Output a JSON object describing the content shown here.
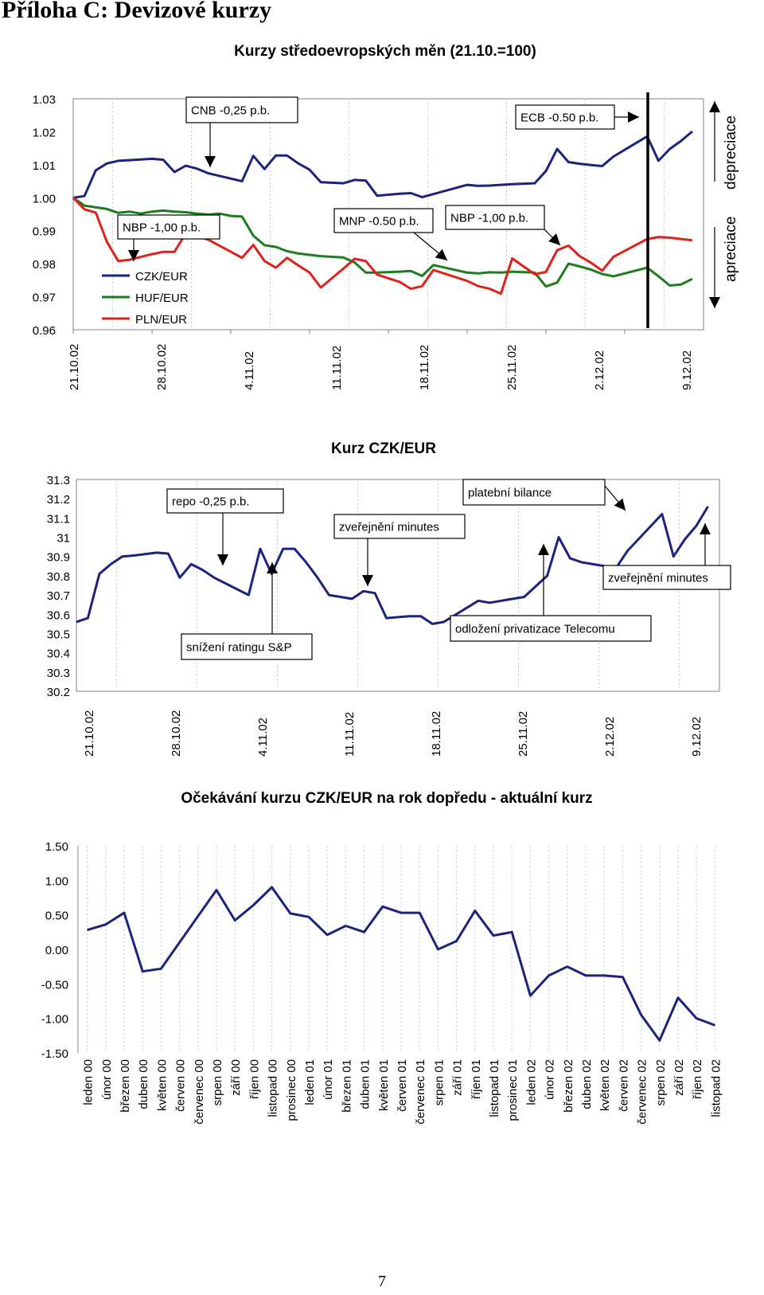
{
  "page": {
    "heading": "Příloha C: Devizové kurzy",
    "page_number": "7"
  },
  "colors": {
    "czk": "#1a237e",
    "huf": "#1b7d1b",
    "pln": "#e0201a"
  },
  "chart_data": [
    {
      "type": "line",
      "title": "Kurzy středoevropských měn (21.10.=100)",
      "x_tick_labels": [
        "21.10.02",
        "28.10.02",
        "4.11.02",
        "11.11.02",
        "18.11.02",
        "25.11.02",
        "2.12.02",
        "9.12.02"
      ],
      "y_ticks": [
        "1.03",
        "1.02",
        "1.01",
        "1.00",
        "0.99",
        "0.98",
        "0.97",
        "0.96"
      ],
      "ylim": [
        0.96,
        1.03
      ],
      "xlim": [
        0,
        56
      ],
      "grid": "vertical",
      "legend_position": "bottom-left",
      "series": [
        {
          "name": "CZK/EUR",
          "color": "#1a237e",
          "x": [
            0,
            1,
            2,
            3,
            4,
            5,
            7,
            8,
            9,
            10,
            11,
            12,
            15,
            16,
            17,
            18,
            19,
            20,
            21,
            22,
            24,
            25,
            26,
            27,
            29,
            30,
            31,
            32,
            35,
            36,
            37,
            38,
            39,
            41,
            42,
            43,
            44,
            45,
            46,
            47,
            48,
            51,
            52,
            53,
            54,
            55
          ],
          "values": [
            1.0,
            1.0005,
            1.0083,
            1.0104,
            1.0112,
            1.0114,
            1.0118,
            1.0115,
            1.0078,
            1.0097,
            1.0088,
            1.0074,
            1.005,
            1.0127,
            1.0087,
            1.0128,
            1.0128,
            1.0104,
            1.0085,
            1.0047,
            1.0044,
            1.0054,
            1.0052,
            1.0006,
            1.0012,
            1.0014,
            1.0002,
            1.0011,
            1.0039,
            1.0036,
            1.0037,
            1.0039,
            1.0041,
            1.0044,
            1.0081,
            1.0148,
            1.0108,
            1.0103,
            1.0099,
            1.0096,
            1.0125,
            1.0186,
            1.0112,
            1.0148,
            1.0172,
            1.0201
          ]
        },
        {
          "name": "HUF/EUR",
          "color": "#1b7d1b",
          "x": [
            0,
            1,
            2,
            3,
            4,
            5,
            6,
            7,
            8,
            9,
            10,
            11,
            12,
            13,
            14,
            15,
            16,
            17,
            18,
            19,
            20,
            21,
            22,
            24,
            25,
            26,
            27,
            29,
            30,
            31,
            32,
            35,
            36,
            37,
            38,
            39,
            41,
            42,
            43,
            44,
            45,
            46,
            47,
            48,
            51,
            52,
            53,
            54,
            55
          ],
          "values": [
            1.0,
            0.9976,
            0.9971,
            0.9966,
            0.9954,
            0.9958,
            0.9952,
            0.9958,
            0.9961,
            0.9958,
            0.9956,
            0.9952,
            0.9949,
            0.9952,
            0.9945,
            0.9943,
            0.9885,
            0.9856,
            0.9851,
            0.9838,
            0.9831,
            0.9827,
            0.9823,
            0.9819,
            0.9804,
            0.9773,
            0.9773,
            0.9776,
            0.9778,
            0.9763,
            0.9796,
            0.9773,
            0.9771,
            0.9774,
            0.9773,
            0.9776,
            0.9773,
            0.9731,
            0.9743,
            0.98,
            0.9792,
            0.9782,
            0.9769,
            0.9762,
            0.9788,
            0.9762,
            0.9734,
            0.9737,
            0.9754
          ]
        },
        {
          "name": "PLN/EUR",
          "color": "#e0201a",
          "x": [
            0,
            1,
            2,
            3,
            4,
            5,
            7,
            8,
            9,
            10,
            11,
            12,
            15,
            16,
            17,
            18,
            19,
            20,
            21,
            22,
            24,
            25,
            26,
            27,
            29,
            30,
            31,
            32,
            35,
            36,
            37,
            38,
            39,
            41,
            42,
            43,
            44,
            45,
            46,
            47,
            48,
            51,
            52,
            53,
            54,
            55
          ],
          "values": [
            1.0,
            0.9965,
            0.9955,
            0.9866,
            0.9808,
            0.9812,
            0.9829,
            0.9836,
            0.9836,
            0.9892,
            0.9883,
            0.9873,
            0.9818,
            0.9857,
            0.9808,
            0.9788,
            0.9818,
            0.9795,
            0.9773,
            0.9728,
            0.9785,
            0.9815,
            0.9808,
            0.9767,
            0.9745,
            0.9724,
            0.9732,
            0.9781,
            0.9748,
            0.9732,
            0.9724,
            0.9709,
            0.9816,
            0.9768,
            0.9775,
            0.9841,
            0.9855,
            0.9823,
            0.9803,
            0.9779,
            0.9821,
            0.9875,
            0.9881,
            0.9879,
            0.9875,
            0.9871
          ]
        }
      ],
      "annotations": [
        {
          "text": "CNB -0,25 p.b."
        },
        {
          "text": "ECB -0.50 p.b."
        },
        {
          "text": "NBP -1,00 p.b."
        },
        {
          "text": "MNP -0.50 p.b."
        },
        {
          "text": "NBP -1,00 p.b."
        }
      ],
      "side_labels": {
        "top": "depreciace",
        "bottom": "apreciace"
      }
    },
    {
      "type": "line",
      "title": "Kurz CZK/EUR",
      "x_tick_labels": [
        "21.10.02",
        "28.10.02",
        "4.11.02",
        "11.11.02",
        "18.11.02",
        "25.11.02",
        "2.12.02",
        "9.12.02"
      ],
      "y_ticks": [
        "31.3",
        "31.2",
        "31.1",
        "31",
        "30.9",
        "30.8",
        "30.7",
        "30.6",
        "30.5",
        "30.4",
        "30.3",
        "30.2"
      ],
      "ylim": [
        30.2,
        31.3
      ],
      "xlim": [
        0,
        56
      ],
      "grid": "vertical",
      "series": [
        {
          "name": "",
          "color": "#1a237e",
          "x": [
            0,
            1,
            2,
            3,
            4,
            5,
            7,
            8,
            9,
            10,
            11,
            12,
            15,
            16,
            17,
            18,
            19,
            20,
            21,
            22,
            24,
            25,
            26,
            27,
            29,
            30,
            31,
            32,
            35,
            36,
            37,
            38,
            39,
            41,
            42,
            43,
            44,
            45,
            46,
            47,
            48,
            51,
            52,
            53,
            54,
            55
          ],
          "values": [
            30.56,
            30.58,
            30.81,
            30.86,
            30.9,
            30.905,
            30.92,
            30.915,
            30.79,
            30.86,
            30.83,
            30.79,
            30.7,
            30.94,
            30.81,
            30.94,
            30.94,
            30.87,
            30.79,
            30.7,
            30.68,
            30.72,
            30.71,
            30.58,
            30.59,
            30.59,
            30.55,
            30.56,
            30.67,
            30.66,
            30.67,
            30.68,
            30.69,
            30.8,
            31.0,
            30.89,
            30.87,
            30.86,
            30.85,
            30.84,
            30.93,
            31.12,
            30.9,
            30.99,
            31.06,
            31.16
          ]
        }
      ],
      "annotations": [
        {
          "text": "repo -0,25 p.b."
        },
        {
          "text": "snížení ratingu S&P"
        },
        {
          "text": "zveřejnění minutes"
        },
        {
          "text": "platební bilance"
        },
        {
          "text": "odložení privatizace Telecomu"
        },
        {
          "text": "zveřejnění minutes"
        }
      ]
    },
    {
      "type": "line",
      "title": "Očekávání kurzu CZK/EUR na rok dopředu - aktuální kurz",
      "categories": [
        "leden 00",
        "únor 00",
        "březen 00",
        "duben 00",
        "květen 00",
        "červen 00",
        "červenec 00",
        "srpen 00",
        "září 00",
        "říjen 00",
        "listopad 00",
        "prosinec 00",
        "leden 01",
        "únor 01",
        "březen 01",
        "duben 01",
        "květen 01",
        "červen 01",
        "červenec 01",
        "srpen 01",
        "září 01",
        "říjen 01",
        "listopad 01",
        "prosinec 01",
        "leden 02",
        "únor 02",
        "březen 02",
        "duben 02",
        "květen 02",
        "červen 02",
        "červenec 02",
        "srpen 02",
        "září 02",
        "říjen 02",
        "listopad 02"
      ],
      "y_ticks": [
        "1.50",
        "1.00",
        "0.50",
        "0.00",
        "-0.50",
        "-1.00",
        "-1.50"
      ],
      "ylim": [
        -1.5,
        1.5
      ],
      "grid": "vertical",
      "series": [
        {
          "name": "",
          "color": "#1a237e",
          "values": [
            0.28,
            0.36,
            0.53,
            -0.32,
            -0.28,
            0.1,
            0.48,
            0.86,
            0.42,
            0.64,
            0.9,
            0.52,
            0.47,
            0.21,
            0.34,
            0.25,
            0.62,
            0.53,
            0.53,
            0.0,
            0.12,
            0.56,
            0.2,
            0.25,
            -0.67,
            -0.38,
            -0.25,
            -0.38,
            -0.38,
            -0.4,
            -0.95,
            -1.32,
            -0.7,
            -1.0,
            -1.1
          ]
        }
      ]
    }
  ]
}
